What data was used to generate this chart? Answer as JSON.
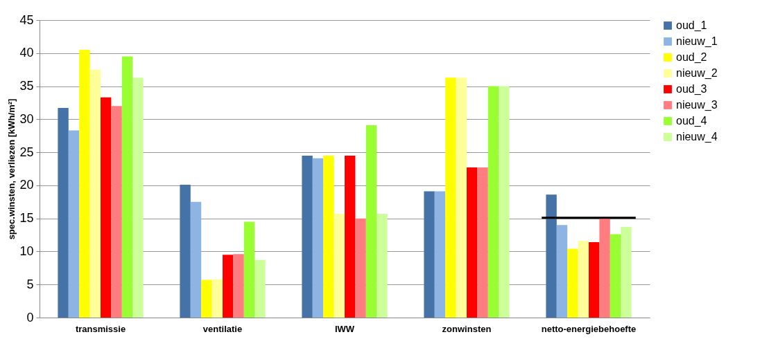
{
  "chart_data": {
    "type": "bar",
    "ylabel": "spec.winsten, verliezen [kWh/m²]",
    "categories": [
      "transmissie",
      "ventilatie",
      "IWW",
      "zonwinsten",
      "netto-energiebehoefte"
    ],
    "series": [
      {
        "name": "oud_1",
        "color": "#4572a7",
        "values": [
          31.7,
          20.1,
          24.5,
          19.1,
          18.6
        ]
      },
      {
        "name": "nieuw_1",
        "color": "#8eb4e3",
        "values": [
          28.3,
          17.5,
          24.1,
          19.1,
          14.0
        ]
      },
      {
        "name": "oud_2",
        "color": "#ffff00",
        "values": [
          40.5,
          5.7,
          24.5,
          36.3,
          10.4
        ]
      },
      {
        "name": "nieuw_2",
        "color": "#ffff99",
        "values": [
          37.5,
          5.8,
          15.7,
          36.3,
          11.6
        ]
      },
      {
        "name": "oud_3",
        "color": "#ff0000",
        "values": [
          33.3,
          9.5,
          24.5,
          22.7,
          11.4
        ]
      },
      {
        "name": "nieuw_3",
        "color": "#ff7c80",
        "values": [
          32.0,
          9.6,
          15.0,
          22.7,
          15.0
        ]
      },
      {
        "name": "oud_4",
        "color": "#99ff33",
        "values": [
          39.5,
          14.5,
          29.1,
          35.0,
          12.6
        ]
      },
      {
        "name": "nieuw_4",
        "color": "#ccff99",
        "values": [
          36.3,
          8.7,
          15.7,
          35.0,
          13.7
        ]
      }
    ],
    "ylim": [
      0,
      45
    ],
    "yticks": [
      0,
      5,
      10,
      15,
      20,
      25,
      30,
      35,
      40,
      45
    ],
    "ref_lines": [
      {
        "axis": "y",
        "value": 15.1,
        "color": "#000000"
      }
    ],
    "grid": "y",
    "legend": "right"
  }
}
